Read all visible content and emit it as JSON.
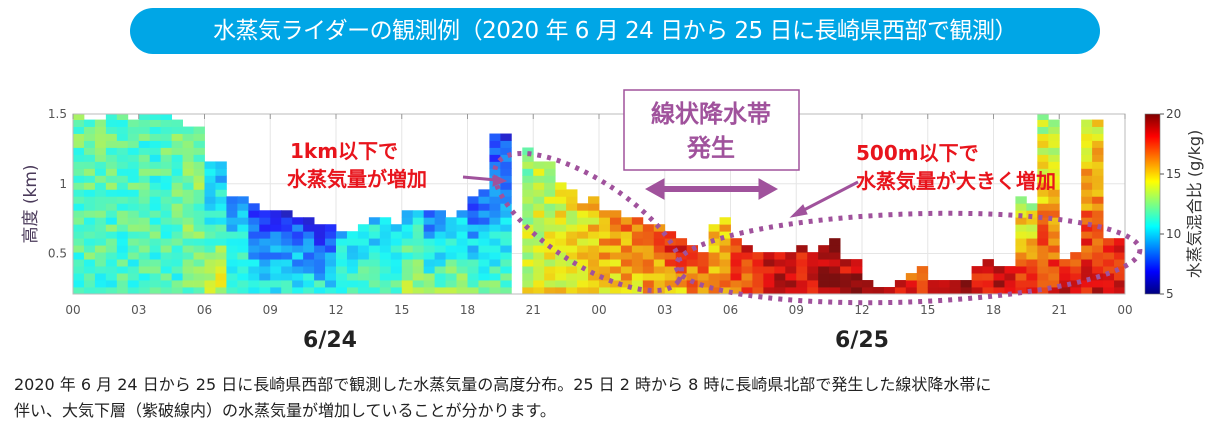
{
  "title": "水蒸気ライダーの観測例（2020 年 6 月 24 日から 25 日に長崎県西部で観測）",
  "caption": [
    "2020 年 6 月 24 日から 25 日に長崎県西部で観測した水蒸気量の高度分布。25 日 2 時から 8 時に長崎県北部で発生した線状降水帯に",
    "伴い、大気下層（紫破線内）の水蒸気量が増加していることが分かります。"
  ],
  "annotations": {
    "left": [
      "1km以下で",
      "水蒸気量が増加"
    ],
    "box": [
      "線状降水帯",
      "発生"
    ],
    "right": [
      "500m以下で",
      "水蒸気量が大きく増加"
    ]
  },
  "colors": {
    "title_bg": "#00a6e6",
    "annotation_red": "#e8141c",
    "annotation_purple": "#a0529c"
  },
  "chart_data": {
    "type": "heatmap",
    "ylabel": "高度 (km)",
    "colorbar_label": "水蒸気混合比 (g/kg)",
    "colorbar_ticks": [
      "20",
      "15",
      "10",
      "5"
    ],
    "clim": [
      5,
      20
    ],
    "colormap": "jet",
    "ylim": [
      0.21,
      1.5
    ],
    "y_ticks": [
      "1.5",
      "1",
      "0.5"
    ],
    "x_ticks": [
      "00",
      "03",
      "06",
      "09",
      "12",
      "15",
      "18",
      "21",
      "00",
      "03",
      "06",
      "09",
      "12",
      "15",
      "18",
      "21",
      "00"
    ],
    "date_labels": [
      "6/24",
      "6/25"
    ],
    "x_unit": "hour (JST) from 6/24 00",
    "xlim": [
      0,
      48
    ],
    "gap_hours": [
      20
    ],
    "columns_note_fields": [
      "hour",
      "top_km",
      "value_near_ground_gkg",
      "value_at_top_gkg"
    ],
    "columns": [
      [
        0,
        1.5,
        11.5,
        12
      ],
      [
        1,
        1.5,
        11.5,
        12
      ],
      [
        2,
        1.5,
        11.5,
        12
      ],
      [
        3,
        1.5,
        11.5,
        11.5
      ],
      [
        4,
        1.5,
        11.5,
        12
      ],
      [
        5,
        1.45,
        12,
        12.5
      ],
      [
        6,
        1.2,
        14,
        9
      ],
      [
        7,
        0.95,
        12,
        9
      ],
      [
        8,
        0.85,
        11,
        7
      ],
      [
        9,
        0.8,
        11,
        6.5
      ],
      [
        10,
        0.75,
        11,
        7
      ],
      [
        11,
        0.72,
        11,
        6.5
      ],
      [
        12,
        0.68,
        11.5,
        9.5
      ],
      [
        13,
        0.72,
        11.5,
        10
      ],
      [
        14,
        0.75,
        12,
        10.5
      ],
      [
        15,
        0.8,
        13,
        10
      ],
      [
        16,
        0.8,
        12.5,
        8
      ],
      [
        17,
        0.78,
        13,
        10
      ],
      [
        18,
        0.95,
        12,
        7.5
      ],
      [
        19,
        1.35,
        12,
        7
      ],
      [
        20,
        1.25,
        14,
        12.5
      ],
      [
        21,
        1.15,
        14.5,
        13
      ],
      [
        22,
        1.0,
        14.5,
        14
      ],
      [
        23,
        0.9,
        14.5,
        15
      ],
      [
        24,
        0.85,
        15,
        16
      ],
      [
        25,
        0.75,
        15,
        16.5
      ],
      [
        26,
        0.7,
        15.5,
        17
      ],
      [
        27,
        0.65,
        15.5,
        18.5
      ],
      [
        28,
        0.55,
        16,
        17
      ],
      [
        29,
        0.75,
        16,
        15
      ],
      [
        30,
        0.6,
        17,
        18
      ],
      [
        31,
        0.52,
        18,
        18.5
      ],
      [
        32,
        0.5,
        18.5,
        18.5
      ],
      [
        33,
        0.55,
        18.5,
        18.5
      ],
      [
        34,
        0.6,
        19.5,
        19.5
      ],
      [
        35,
        0.45,
        19.5,
        18.5
      ],
      [
        36,
        0.3,
        18.5,
        18.5
      ],
      [
        37,
        0.3,
        18.5,
        18.5
      ],
      [
        38,
        0.4,
        18,
        17
      ],
      [
        39,
        0.3,
        18.5,
        18.5
      ],
      [
        40,
        0.3,
        19,
        19
      ],
      [
        41,
        0.45,
        18.5,
        18
      ],
      [
        42,
        0.4,
        19,
        18.5
      ],
      [
        43,
        0.9,
        18.5,
        13
      ],
      [
        44,
        1.5,
        18,
        13
      ],
      [
        45,
        0.5,
        18.5,
        17
      ],
      [
        46,
        1.5,
        18.5,
        14
      ],
      [
        47,
        0.6,
        18.5,
        17.5
      ]
    ]
  }
}
